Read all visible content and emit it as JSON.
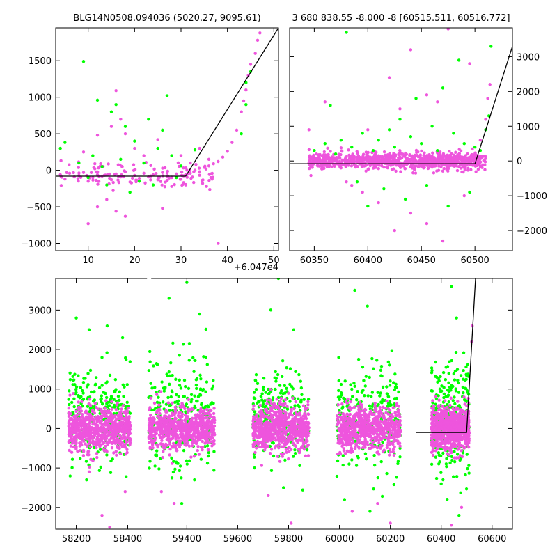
{
  "figure": {
    "background": "#ffffff",
    "colors": {
      "green": "#00ff00",
      "pink": "#ee55dd",
      "model_line": "#000000"
    }
  },
  "chart_data": [
    {
      "type": "scatter",
      "title": "BLG14N0508.094036 (5020.27, 9095.61)",
      "x_offset_label": "+6.047e4",
      "xlim": [
        3,
        51
      ],
      "ylim": [
        -1100,
        1950
      ],
      "x_ticks": [
        10,
        20,
        30,
        40,
        50
      ],
      "x_tick_labels": [
        "10",
        "20",
        "30",
        "40",
        "50"
      ],
      "y_ticks": [
        -1000,
        -500,
        0,
        500,
        1000,
        1500
      ],
      "y_tick_labels": [
        "−1000",
        "−500",
        "0",
        "500",
        "1000",
        "1500"
      ],
      "y_ticks_side": "left",
      "grid": false,
      "model_line": [
        [
          3,
          -80
        ],
        [
          31,
          -80
        ],
        [
          51,
          1950
        ]
      ],
      "series": [
        {
          "color": "#ee55dd",
          "points": [
            [
              4,
              -60
            ],
            [
              5,
              -120
            ],
            [
              6,
              -40
            ],
            [
              7,
              -90
            ],
            [
              8,
              -70
            ],
            [
              9,
              -30
            ],
            [
              10,
              -150
            ],
            [
              11,
              -100
            ],
            [
              12,
              -60
            ],
            [
              13,
              -80
            ],
            [
              15,
              -130
            ],
            [
              16,
              -50
            ],
            [
              17,
              -90
            ],
            [
              18,
              -20
            ],
            [
              19,
              -160
            ],
            [
              20,
              -70
            ],
            [
              21,
              -110
            ],
            [
              22,
              -40
            ],
            [
              23,
              -90
            ],
            [
              24,
              -60
            ],
            [
              25,
              -130
            ],
            [
              26,
              -30
            ],
            [
              27,
              -80
            ],
            [
              28,
              -100
            ],
            [
              29,
              -50
            ],
            [
              30,
              -120
            ],
            [
              31,
              -60
            ],
            [
              32,
              -40
            ],
            [
              33,
              0
            ],
            [
              34,
              -20
            ],
            [
              35,
              40
            ],
            [
              36,
              60
            ],
            [
              37,
              90
            ],
            [
              38,
              120
            ],
            [
              39,
              180
            ],
            [
              40,
              260
            ],
            [
              41,
              380
            ],
            [
              42,
              550
            ],
            [
              43,
              800
            ],
            [
              43.5,
              950
            ],
            [
              44,
              1100
            ],
            [
              44.5,
              1300
            ],
            [
              45,
              1450
            ],
            [
              46,
              1600
            ],
            [
              46.5,
              1780
            ],
            [
              47,
              1880
            ],
            [
              10,
              -730
            ],
            [
              12,
              -500
            ],
            [
              14,
              -400
            ],
            [
              16,
              -560
            ],
            [
              18,
              -630
            ],
            [
              26,
              -520
            ],
            [
              38,
              -1000
            ],
            [
              12,
              480
            ],
            [
              15,
              600
            ],
            [
              16,
              1090
            ],
            [
              17,
              700
            ],
            [
              20,
              300
            ],
            [
              25,
              420
            ],
            [
              9,
              250
            ],
            [
              30,
              200
            ],
            [
              34,
              300
            ],
            [
              36,
              150
            ],
            [
              32,
              100
            ],
            [
              28,
              -220
            ],
            [
              22,
              200
            ],
            [
              18,
              500
            ]
          ]
        },
        {
          "color": "#00ff00",
          "points": [
            [
              4,
              300
            ],
            [
              5,
              380
            ],
            [
              8,
              100
            ],
            [
              9,
              1490
            ],
            [
              10,
              -100
            ],
            [
              11,
              200
            ],
            [
              12,
              960
            ],
            [
              13,
              50
            ],
            [
              14,
              -200
            ],
            [
              15,
              800
            ],
            [
              16,
              900
            ],
            [
              17,
              150
            ],
            [
              18,
              600
            ],
            [
              19,
              -300
            ],
            [
              20,
              400
            ],
            [
              21,
              -150
            ],
            [
              22,
              100
            ],
            [
              23,
              700
            ],
            [
              24,
              -200
            ],
            [
              25,
              300
            ],
            [
              26,
              550
            ],
            [
              27,
              1020
            ],
            [
              28,
              200
            ],
            [
              29,
              -100
            ],
            [
              30,
              60
            ],
            [
              33,
              280
            ],
            [
              43,
              500
            ],
            [
              44,
              1200
            ],
            [
              45,
              1350
            ],
            [
              44,
              900
            ]
          ]
        }
      ]
    },
    {
      "type": "scatter",
      "title": "3 680 838.55 -8.000 -8 [60515.511, 60516.772]",
      "xlim": [
        60327,
        60535
      ],
      "ylim": [
        -2580,
        3830
      ],
      "x_ticks": [
        60350,
        60400,
        60450,
        60500
      ],
      "x_tick_labels": [
        "60350",
        "60400",
        "60450",
        "60500"
      ],
      "y_ticks": [
        -2000,
        -1000,
        0,
        1000,
        2000,
        3000
      ],
      "y_tick_labels": [
        "−2000",
        "−1000",
        "0",
        "1000",
        "2000",
        "3000"
      ],
      "y_ticks_side": "right",
      "grid": false,
      "model_line": [
        [
          60327,
          -80
        ],
        [
          60500,
          -80
        ],
        [
          60535,
          3300
        ]
      ],
      "series": [
        {
          "color": "#ee55dd",
          "points": [
            [
              60345,
              -60
            ],
            [
              60350,
              50
            ],
            [
              60355,
              -150
            ],
            [
              60360,
              100
            ],
            [
              60365,
              -80
            ],
            [
              60370,
              0
            ],
            [
              60375,
              -200
            ],
            [
              60380,
              120
            ],
            [
              60385,
              -50
            ],
            [
              60390,
              80
            ],
            [
              60395,
              -120
            ],
            [
              60400,
              30
            ],
            [
              60405,
              -60
            ],
            [
              60410,
              150
            ],
            [
              60415,
              -180
            ],
            [
              60420,
              60
            ],
            [
              60425,
              -20
            ],
            [
              60430,
              110
            ],
            [
              60435,
              -90
            ],
            [
              60440,
              40
            ],
            [
              60445,
              -140
            ],
            [
              60450,
              90
            ],
            [
              60455,
              -30
            ],
            [
              60460,
              130
            ],
            [
              60465,
              -70
            ],
            [
              60470,
              20
            ],
            [
              60475,
              -160
            ],
            [
              60480,
              70
            ],
            [
              60485,
              -40
            ],
            [
              60490,
              100
            ],
            [
              60495,
              -110
            ],
            [
              60500,
              10
            ],
            [
              60505,
              600
            ],
            [
              60510,
              1200
            ],
            [
              60512,
              1800
            ],
            [
              60514,
              2200
            ],
            [
              60345,
              900
            ],
            [
              60360,
              1700
            ],
            [
              60380,
              -600
            ],
            [
              60395,
              -900
            ],
            [
              60410,
              -1200
            ],
            [
              60425,
              -2000
            ],
            [
              60440,
              -1500
            ],
            [
              60455,
              -1800
            ],
            [
              60470,
              -2300
            ],
            [
              60490,
              -1000
            ],
            [
              60420,
              2400
            ],
            [
              60440,
              3200
            ],
            [
              60455,
              1900
            ],
            [
              60475,
              3800
            ],
            [
              60495,
              2800
            ],
            [
              60430,
              1500
            ],
            [
              60465,
              1700
            ],
            [
              60400,
              900
            ],
            [
              60385,
              -700
            ]
          ]
        },
        {
          "color": "#00ff00",
          "points": [
            [
              60350,
              300
            ],
            [
              60360,
              500
            ],
            [
              60365,
              1600
            ],
            [
              60370,
              200
            ],
            [
              60375,
              600
            ],
            [
              60380,
              3700
            ],
            [
              60385,
              400
            ],
            [
              60390,
              -600
            ],
            [
              60395,
              800
            ],
            [
              60400,
              -1300
            ],
            [
              60405,
              300
            ],
            [
              60410,
              600
            ],
            [
              60415,
              -800
            ],
            [
              60420,
              900
            ],
            [
              60425,
              400
            ],
            [
              60430,
              1200
            ],
            [
              60435,
              -1100
            ],
            [
              60440,
              700
            ],
            [
              60445,
              1800
            ],
            [
              60450,
              500
            ],
            [
              60455,
              -700
            ],
            [
              60460,
              1000
            ],
            [
              60465,
              300
            ],
            [
              60470,
              2100
            ],
            [
              60475,
              -1300
            ],
            [
              60480,
              800
            ],
            [
              60485,
              2900
            ],
            [
              60490,
              500
            ],
            [
              60495,
              -900
            ],
            [
              60500,
              400
            ],
            [
              60505,
              300
            ],
            [
              60510,
              900
            ],
            [
              60513,
              1300
            ],
            [
              60515,
              3300
            ]
          ]
        }
      ]
    },
    {
      "type": "scatter",
      "title": "",
      "xlim": [
        58120,
        60680
      ],
      "ylim": [
        -2550,
        3800
      ],
      "axis_break_x": 58475,
      "x_ticks": [
        58200,
        58400,
        59400,
        59600,
        59800,
        60000,
        60200,
        60400,
        60600
      ],
      "x_tick_labels": [
        "58200",
        "58400",
        "59400",
        "59600",
        "59800",
        "60000",
        "60200",
        "60400",
        "60600"
      ],
      "y_ticks": [
        -2000,
        -1000,
        0,
        1000,
        2000,
        3000
      ],
      "y_tick_labels": [
        "−2000",
        "−1000",
        "0",
        "1000",
        "2000",
        "3000"
      ],
      "y_ticks_side": "left",
      "grid": false,
      "model_line": [
        [
          60300,
          -100
        ],
        [
          60500,
          -100
        ],
        [
          60535,
          3800
        ]
      ],
      "season_bands": [
        {
          "x_range": [
            58170,
            58410
          ],
          "pink_sd": 260,
          "green_mean": 700,
          "green_sd": 900
        },
        {
          "x_range": [
            59250,
            59510
          ],
          "pink_sd": 260,
          "green_mean": 800,
          "green_sd": 1100
        },
        {
          "x_range": [
            59660,
            59880
          ],
          "pink_sd": 300,
          "green_mean": 500,
          "green_sd": 900
        },
        {
          "x_range": [
            59990,
            60240
          ],
          "pink_sd": 280,
          "green_mean": 500,
          "green_sd": 1000
        },
        {
          "x_range": [
            60360,
            60510
          ],
          "pink_sd": 280,
          "green_mean": 600,
          "green_sd": 1100
        }
      ],
      "series": [
        {
          "color": "#00ff00",
          "points": [
            [
              58200,
              2800
            ],
            [
              58250,
              2500
            ],
            [
              58320,
              2600
            ],
            [
              58380,
              2300
            ],
            [
              58240,
              -1300
            ],
            [
              58300,
              1800
            ],
            [
              59330,
              3300
            ],
            [
              59400,
              3700
            ],
            [
              59450,
              2900
            ],
            [
              59380,
              -1900
            ],
            [
              59430,
              -1300
            ],
            [
              59730,
              3000
            ],
            [
              59760,
              3800
            ],
            [
              59820,
              2500
            ],
            [
              59780,
              -1500
            ],
            [
              60060,
              3500
            ],
            [
              60110,
              3100
            ],
            [
              60020,
              -1800
            ],
            [
              60120,
              -2100
            ],
            [
              60440,
              3600
            ],
            [
              60460,
              2800
            ],
            [
              60400,
              -1400
            ],
            [
              60470,
              -2200
            ]
          ]
        },
        {
          "color": "#ee55dd",
          "points": [
            [
              58250,
              -1100
            ],
            [
              58300,
              -2200
            ],
            [
              58330,
              -2500
            ],
            [
              58390,
              -1600
            ],
            [
              59300,
              -1600
            ],
            [
              59350,
              -1900
            ],
            [
              59720,
              -1700
            ],
            [
              59810,
              -2400
            ],
            [
              60050,
              -2100
            ],
            [
              60150,
              -1900
            ],
            [
              60200,
              -2400
            ],
            [
              60440,
              -2450
            ],
            [
              60480,
              -2000
            ],
            [
              60520,
              2200
            ],
            [
              60522,
              2600
            ]
          ]
        }
      ]
    }
  ]
}
